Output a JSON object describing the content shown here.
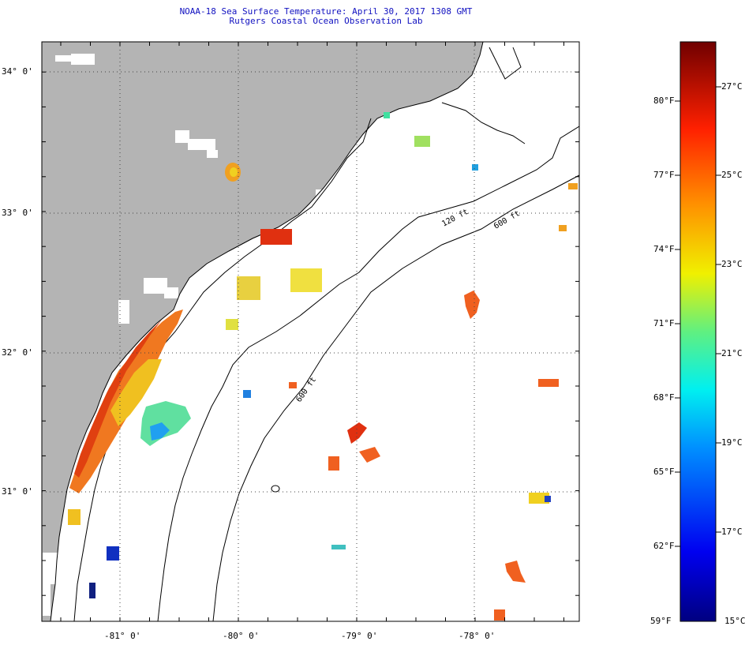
{
  "title": "NOAA-18 Sea Surface Temperature:  April 30, 2017 1308 GMT",
  "subtitle": "Rutgers Coastal Ocean Observation Lab",
  "map": {
    "lat_labels": [
      "34° 0'",
      "33° 0'",
      "32° 0'",
      "31° 0'"
    ],
    "lon_labels": [
      "-81° 0'",
      "-80° 0'",
      "-79° 0'",
      "-78° 0'"
    ],
    "isobath_labels": [
      "120 ft",
      "600 ft"
    ],
    "colors": {
      "land": "#b4b4b4",
      "ocean": "#ffffff",
      "coastline": "#000000",
      "grid": "#555555"
    }
  },
  "colorbar": {
    "fahrenheit_labels": [
      "80°F",
      "77°F",
      "74°F",
      "71°F",
      "68°F",
      "65°F",
      "62°F",
      "59°F"
    ],
    "celsius_labels": [
      "27°C",
      "25°C",
      "23°C",
      "21°C",
      "19°C",
      "17°C",
      "15°C"
    ],
    "min_c": 15,
    "max_c": 28,
    "colormap": "jet"
  }
}
